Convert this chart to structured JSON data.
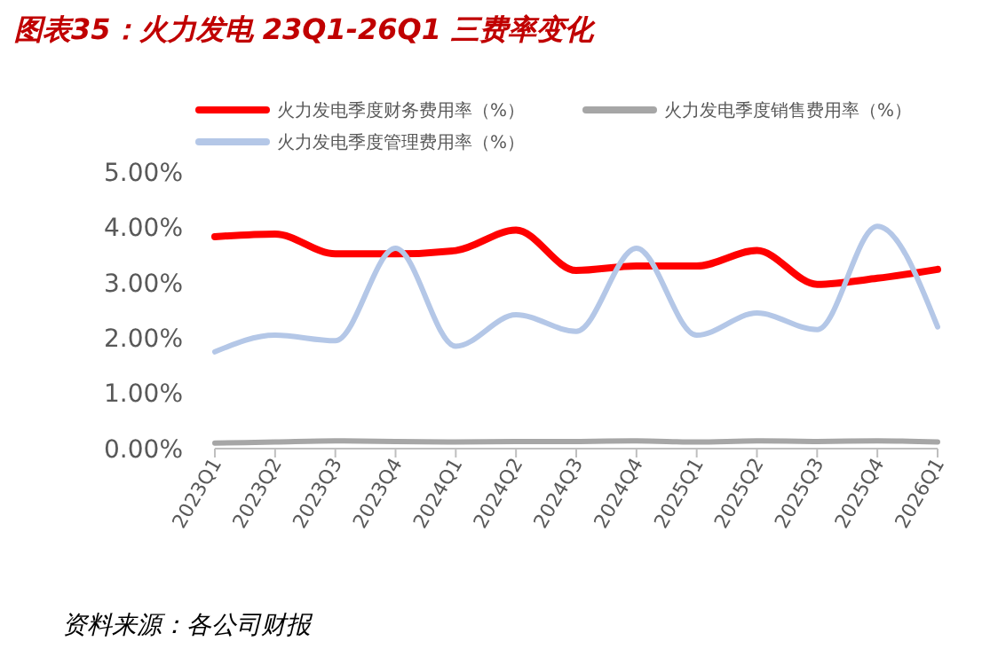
{
  "chart_data": {
    "type": "line",
    "title": "图表35：火力发电 23Q1-26Q1 三费率变化",
    "categories": [
      "2023Q1",
      "2023Q2",
      "2023Q3",
      "2023Q4",
      "2024Q1",
      "2024Q2",
      "2024Q3",
      "2024Q4",
      "2025Q1",
      "2025Q2",
      "2025Q3",
      "2025Q4",
      "2026Q1"
    ],
    "series": [
      {
        "name": "火力发电季度财务费用率（%）",
        "color": "#ff0000",
        "values": [
          3.83,
          3.88,
          3.52,
          3.52,
          3.58,
          3.95,
          3.22,
          3.3,
          3.3,
          3.58,
          2.97,
          3.08,
          3.24
        ]
      },
      {
        "name": "火力发电季度销售费用率（%）",
        "color": "#a6a6a6",
        "values": [
          0.1,
          0.12,
          0.14,
          0.13,
          0.12,
          0.13,
          0.13,
          0.14,
          0.12,
          0.14,
          0.13,
          0.14,
          0.12
        ]
      },
      {
        "name": "火力发电季度管理费用率（%）",
        "color": "#b4c7e7",
        "values": [
          1.75,
          2.05,
          1.95,
          3.62,
          1.85,
          2.42,
          2.12,
          3.62,
          2.05,
          2.45,
          2.15,
          4.02,
          2.2
        ]
      }
    ],
    "ylim": [
      0,
      5
    ],
    "yticks": [
      {
        "value": 0,
        "label": "0.00%"
      },
      {
        "value": 1,
        "label": "1.00%"
      },
      {
        "value": 2,
        "label": "2.00%"
      },
      {
        "value": 3,
        "label": "3.00%"
      },
      {
        "value": 4,
        "label": "4.00%"
      },
      {
        "value": 5,
        "label": "5.00%"
      }
    ],
    "legend": "top",
    "grid": false,
    "marker": "none",
    "line_style": "solid",
    "annotations": [
      "资料来源：各公司财报"
    ]
  }
}
